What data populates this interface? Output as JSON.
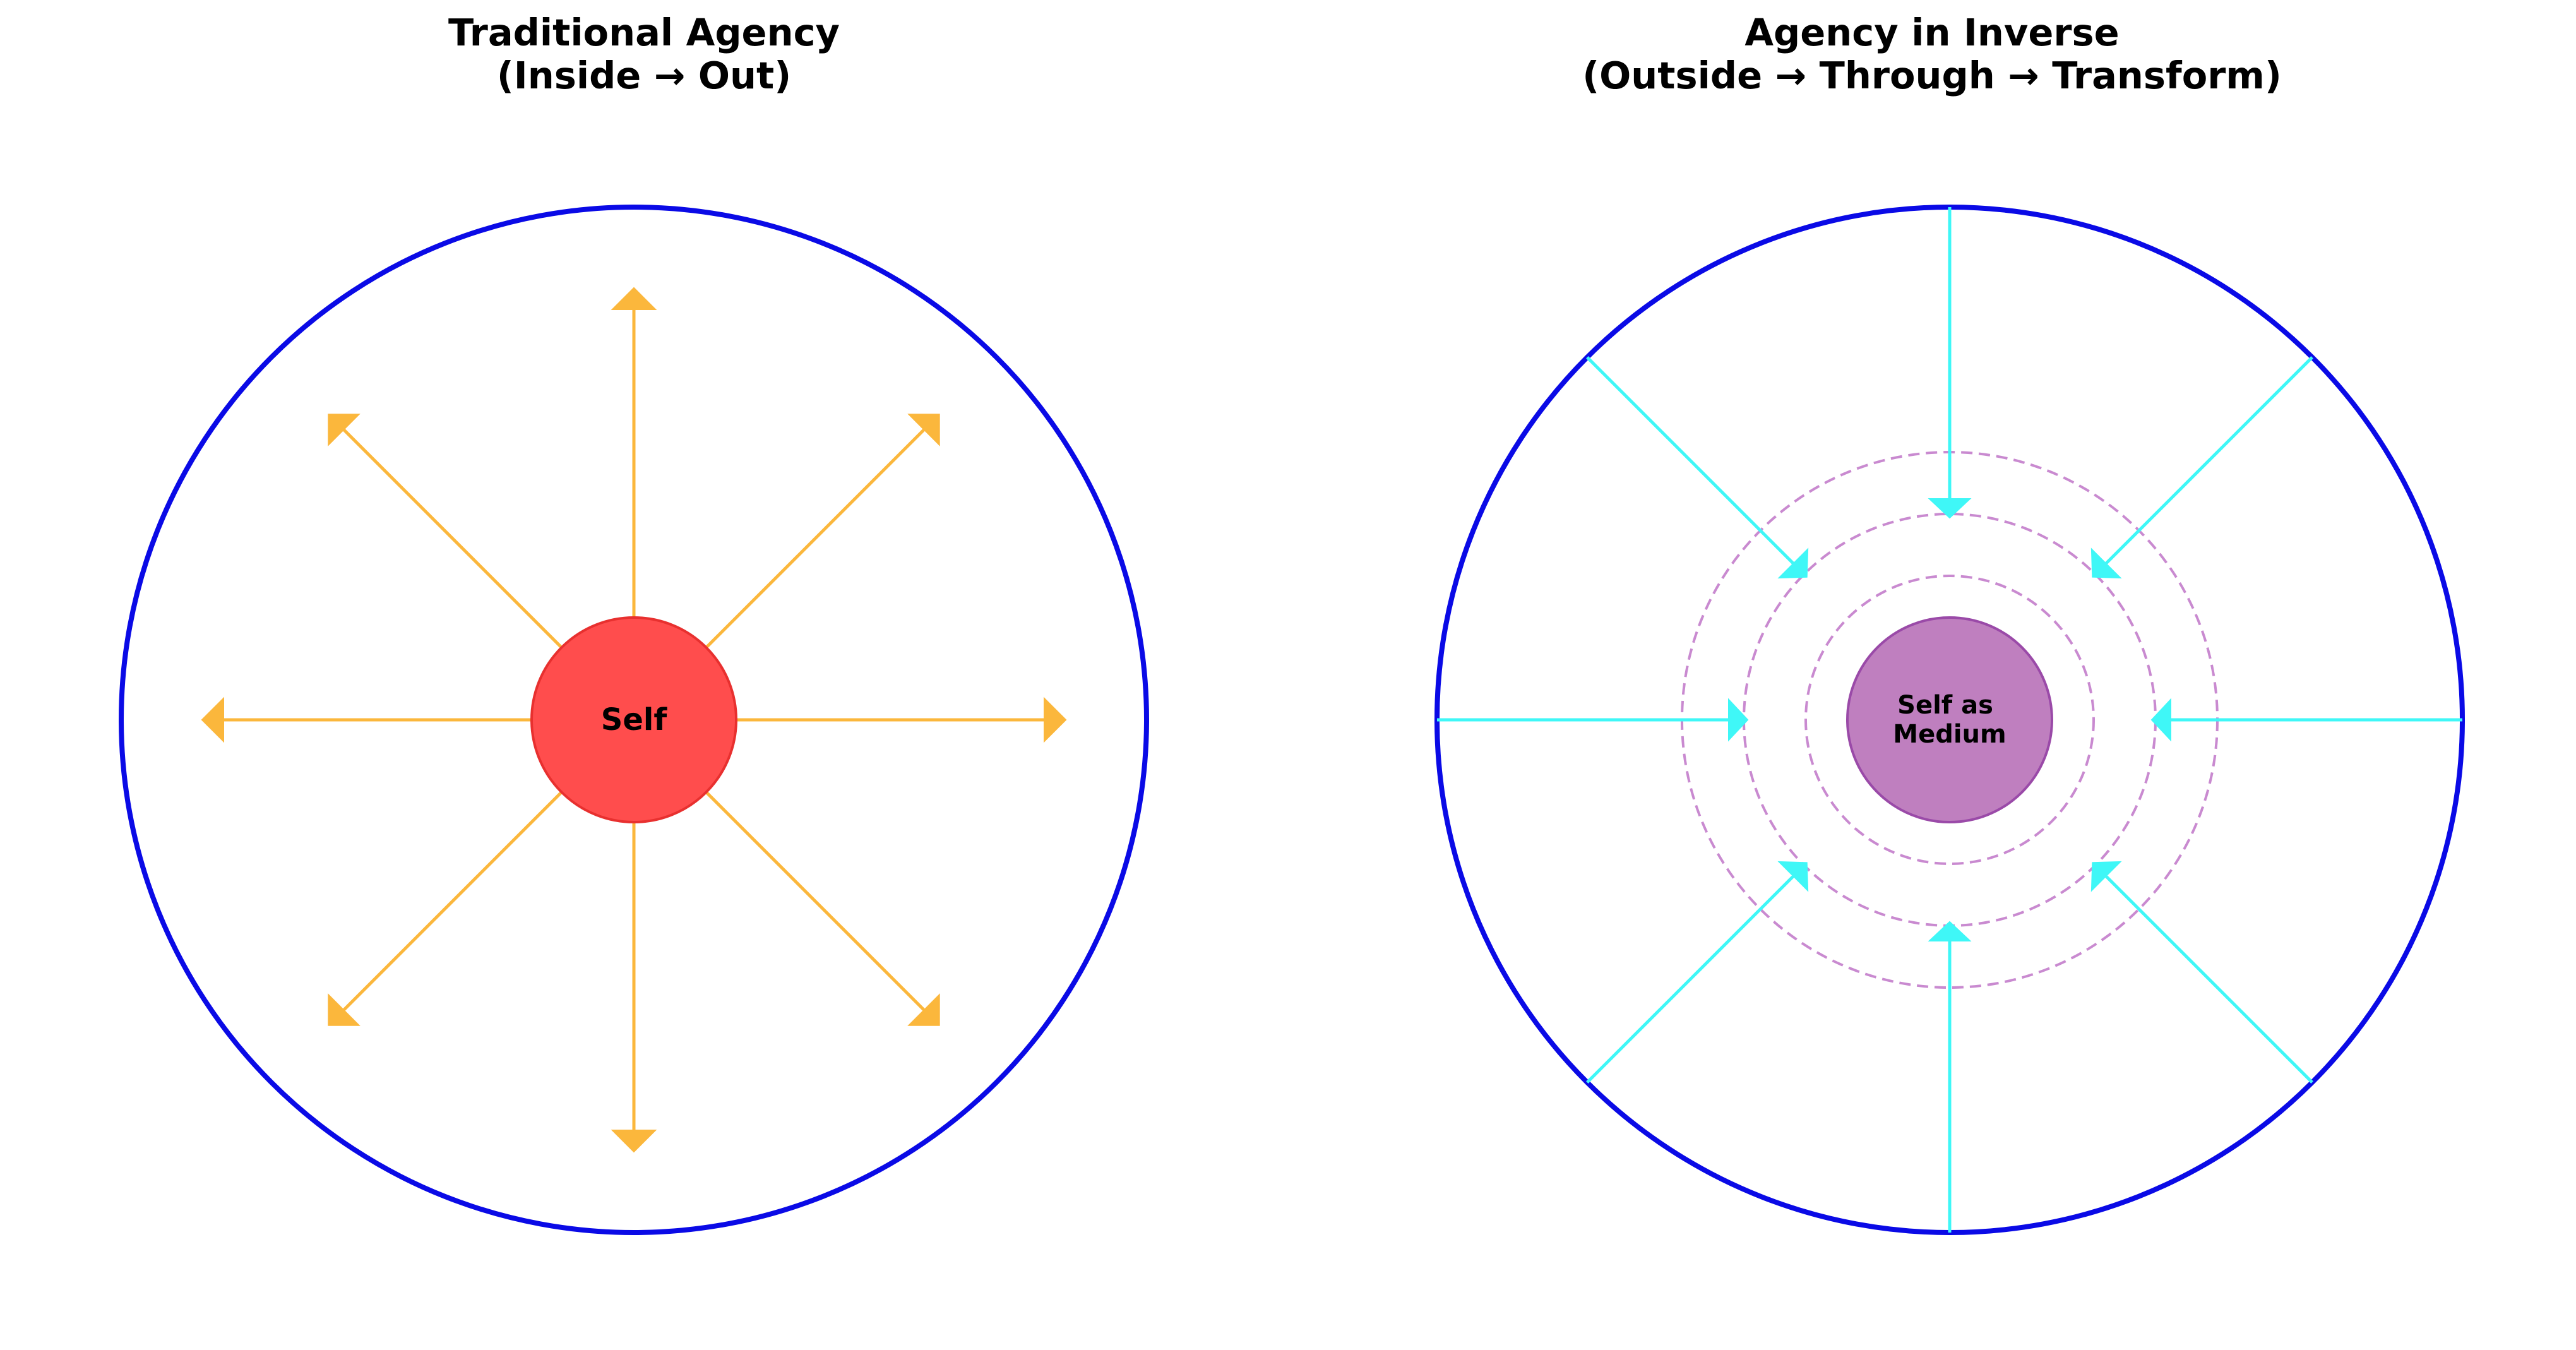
{
  "colors": {
    "boundary": "#0a0ae6",
    "outward_arrow": "#fbb73c",
    "self_core": "#ff4d4d",
    "inward_arrow": "#3ff7f7",
    "medium_core": "#bf7fbf",
    "medium_ring": "#c98ad0"
  },
  "left_panel": {
    "title_line1": "Traditional Agency",
    "title_line2": "(Inside → Out)",
    "center_label": "Self",
    "arrow_direction": "outward",
    "arrow_count": 8
  },
  "right_panel": {
    "title_line1": "Agency in Inverse",
    "title_line2": "(Outside → Through → Transform)",
    "center_label_line1": "Self as",
    "center_label_line2": "Medium",
    "arrow_direction": "inward",
    "arrow_count": 8,
    "ring_count": 3
  },
  "icons": {
    "outward_arrow": "arrow-outward-icon",
    "inward_arrow": "arrow-inward-icon"
  }
}
